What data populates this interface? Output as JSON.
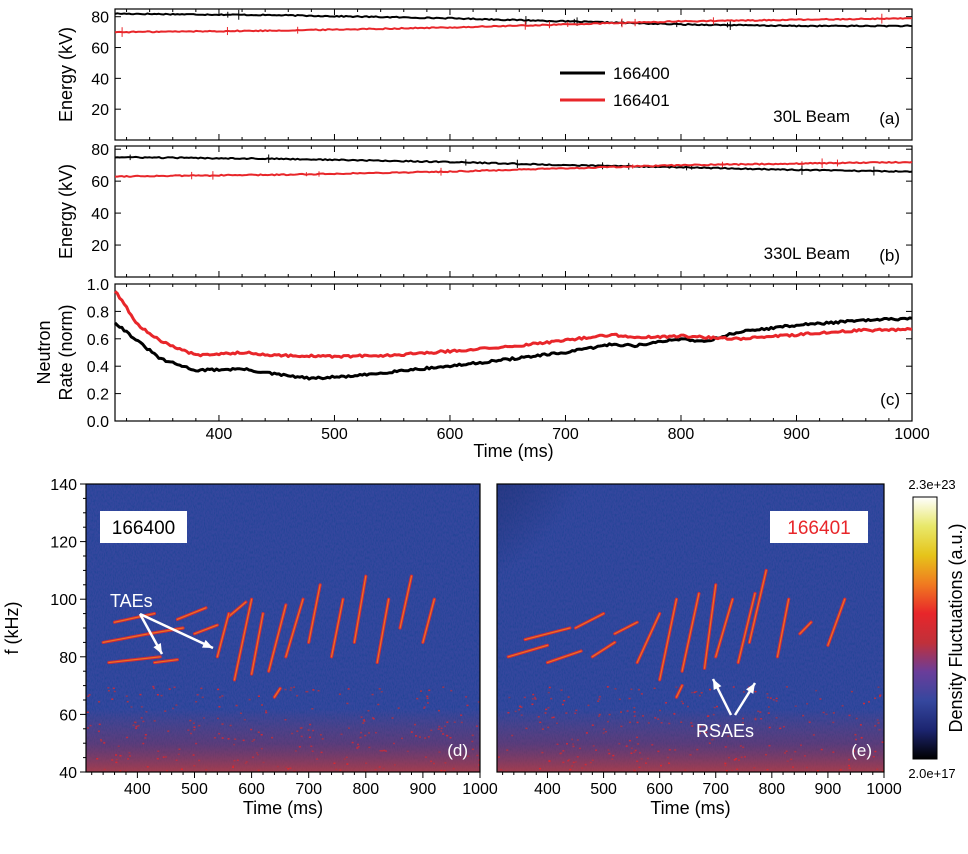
{
  "colors": {
    "shot_166400": "#000000",
    "shot_166401": "#e8262a",
    "annotation": "#ffffff",
    "spectrogram_background": "#35479e"
  },
  "chart_data": [
    {
      "panel": "a",
      "type": "line",
      "ylabel": "Energy (kV)",
      "ylim": [
        0,
        85
      ],
      "xlim": [
        310,
        1000
      ],
      "yticks": [
        20,
        40,
        60,
        80
      ],
      "xticks": [],
      "beam_label": "30L Beam",
      "panel_label": "(a)",
      "legend": {
        "entries": [
          "166400",
          "166401"
        ],
        "position": "center"
      },
      "series": [
        {
          "name": "166400",
          "color": "#000000",
          "x": [
            310,
            450,
            600,
            700,
            750,
            800,
            900,
            1000
          ],
          "y": [
            82,
            81,
            79,
            77,
            76,
            75,
            74,
            74
          ]
        },
        {
          "name": "166401",
          "color": "#e8262a",
          "x": [
            310,
            450,
            600,
            700,
            800,
            900,
            1000
          ],
          "y": [
            70,
            71,
            73,
            75,
            77,
            78,
            79
          ]
        }
      ]
    },
    {
      "panel": "b",
      "type": "line",
      "ylabel": "Energy (kV)",
      "ylim": [
        0,
        82
      ],
      "xlim": [
        310,
        1000
      ],
      "yticks": [
        20,
        40,
        60,
        80
      ],
      "xticks": [],
      "beam_label": "330L Beam",
      "panel_label": "(b)",
      "series": [
        {
          "name": "166400",
          "color": "#000000",
          "x": [
            310,
            450,
            600,
            700,
            780,
            900,
            1000
          ],
          "y": [
            75,
            74,
            72,
            70,
            69,
            67,
            66
          ]
        },
        {
          "name": "166401",
          "color": "#e8262a",
          "x": [
            310,
            450,
            600,
            700,
            800,
            900,
            1000
          ],
          "y": [
            63,
            64,
            66,
            68,
            70,
            71,
            72
          ]
        }
      ]
    },
    {
      "panel": "c",
      "type": "line",
      "ylabel_lines": [
        "Neutron",
        "Rate (norm)"
      ],
      "xlabel": "Time (ms)",
      "ylim": [
        0,
        1.0
      ],
      "xlim": [
        310,
        1000
      ],
      "yticks": [
        0.0,
        0.2,
        0.4,
        0.6,
        0.8,
        1.0
      ],
      "xticks": [
        400,
        500,
        600,
        700,
        800,
        900,
        1000
      ],
      "panel_label": "(c)",
      "series": [
        {
          "name": "166400",
          "color": "#000000",
          "x": [
            310,
            330,
            350,
            380,
            420,
            450,
            480,
            520,
            560,
            600,
            650,
            700,
            740,
            760,
            800,
            820,
            850,
            900,
            950,
            1000
          ],
          "y": [
            0.72,
            0.58,
            0.45,
            0.37,
            0.38,
            0.34,
            0.31,
            0.33,
            0.37,
            0.4,
            0.45,
            0.5,
            0.56,
            0.55,
            0.6,
            0.58,
            0.65,
            0.7,
            0.73,
            0.75
          ]
        },
        {
          "name": "166401",
          "color": "#e8262a",
          "x": [
            310,
            330,
            350,
            380,
            420,
            450,
            500,
            550,
            600,
            650,
            700,
            740,
            760,
            800,
            850,
            900,
            950,
            1000
          ],
          "y": [
            0.95,
            0.7,
            0.58,
            0.48,
            0.5,
            0.48,
            0.47,
            0.48,
            0.51,
            0.54,
            0.59,
            0.63,
            0.61,
            0.62,
            0.6,
            0.63,
            0.66,
            0.67
          ]
        }
      ]
    },
    {
      "panel": "d",
      "type": "heatmap",
      "shot": "166400",
      "ylabel": "f (kHz)",
      "xlabel": "Time (ms)",
      "ylim": [
        40,
        140
      ],
      "xlim": [
        310,
        1000
      ],
      "yticks": [
        40,
        60,
        80,
        100,
        120,
        140
      ],
      "xticks": [
        400,
        500,
        600,
        700,
        800,
        900,
        1000
      ],
      "panel_label": "(d)",
      "annotation": "TAEs",
      "modes": [
        [
          340,
          85,
          420,
          88
        ],
        [
          350,
          78,
          440,
          80
        ],
        [
          360,
          92,
          430,
          95
        ],
        [
          420,
          88,
          480,
          90
        ],
        [
          430,
          78,
          470,
          79
        ],
        [
          470,
          93,
          520,
          97
        ],
        [
          500,
          88,
          540,
          91
        ],
        [
          560,
          94,
          590,
          99
        ],
        [
          540,
          80,
          560,
          95
        ],
        [
          570,
          72,
          600,
          100
        ],
        [
          600,
          74,
          620,
          95
        ],
        [
          630,
          75,
          660,
          98
        ],
        [
          660,
          80,
          690,
          100
        ],
        [
          700,
          85,
          720,
          105
        ],
        [
          740,
          80,
          760,
          100
        ],
        [
          780,
          85,
          800,
          108
        ],
        [
          820,
          78,
          840,
          100
        ],
        [
          860,
          90,
          880,
          108
        ],
        [
          900,
          85,
          920,
          100
        ],
        [
          640,
          66,
          650,
          69
        ]
      ]
    },
    {
      "panel": "e",
      "type": "heatmap",
      "shot": "166401",
      "xlabel": "Time (ms)",
      "ylim": [
        40,
        140
      ],
      "xlim": [
        310,
        1000
      ],
      "xticks": [
        400,
        500,
        600,
        700,
        800,
        900,
        1000
      ],
      "panel_label": "(e)",
      "annotation": "RSAEs",
      "modes": [
        [
          330,
          80,
          400,
          84
        ],
        [
          360,
          86,
          440,
          90
        ],
        [
          400,
          78,
          460,
          82
        ],
        [
          450,
          90,
          500,
          95
        ],
        [
          480,
          80,
          520,
          85
        ],
        [
          520,
          88,
          560,
          92
        ],
        [
          560,
          78,
          600,
          95
        ],
        [
          600,
          72,
          630,
          100
        ],
        [
          640,
          75,
          670,
          102
        ],
        [
          680,
          76,
          700,
          105
        ],
        [
          700,
          80,
          730,
          100
        ],
        [
          740,
          78,
          770,
          102
        ],
        [
          760,
          85,
          790,
          110
        ],
        [
          810,
          80,
          830,
          100
        ],
        [
          850,
          88,
          870,
          92
        ],
        [
          900,
          84,
          930,
          100
        ],
        [
          630,
          66,
          640,
          70
        ]
      ]
    }
  ],
  "colorbar": {
    "label": "Density Fluctuations (a.u.)",
    "max": "2.3e+23",
    "min": "2.0e+17",
    "stops": [
      "#000000",
      "#1c2570",
      "#35479e",
      "#6a3d9a",
      "#c0303a",
      "#e8262a",
      "#f07a20",
      "#e6c41a",
      "#e8e86a",
      "#ffffff"
    ]
  }
}
